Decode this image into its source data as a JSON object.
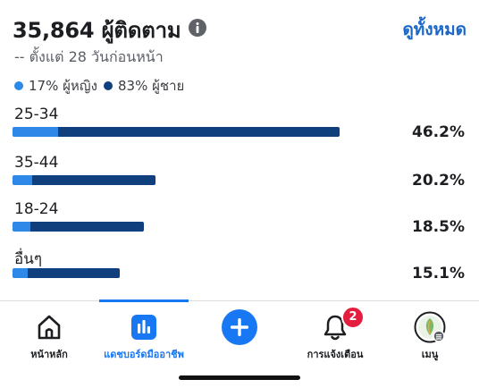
{
  "header": {
    "title": "35,864 ผู้ติดตาม",
    "see_all": "ดูทั้งหมด",
    "subtitle": "-- ตั้งแต่ 28 วันก่อนหน้า"
  },
  "legend": {
    "female": {
      "label": "17% ผู้หญิง",
      "color": "#2d88e8"
    },
    "male": {
      "label": "83% ผู้ชาย",
      "color": "#0f3f7d"
    }
  },
  "chart_data": {
    "type": "bar",
    "orientation": "horizontal",
    "categories": [
      "25-34",
      "35-44",
      "18-24",
      "อื่นๆ"
    ],
    "values": [
      46.2,
      20.2,
      18.5,
      15.1
    ],
    "value_labels": [
      "46.2%",
      "20.2%",
      "18.5%",
      "15.1%"
    ],
    "series": [
      {
        "name": "ผู้หญิง",
        "share": 0.17,
        "color": "#2d88e8"
      },
      {
        "name": "ผู้ชาย",
        "share": 0.83,
        "color": "#0f3f7d"
      }
    ]
  },
  "bottom_nav": {
    "items": [
      {
        "label": "หน้าหลัก",
        "icon": "home-icon"
      },
      {
        "label": "แดชบอร์ดมืออาชีพ",
        "icon": "dashboard-icon",
        "active": true
      },
      {
        "label": "",
        "icon": "create-plus-icon"
      },
      {
        "label": "การแจ้งเตือน",
        "icon": "bell-icon",
        "badge": "2"
      },
      {
        "label": "เมนู",
        "icon": "profile-menu-icon"
      }
    ]
  },
  "colors": {
    "accent": "#1877f2",
    "badge": "#e41e3f",
    "link": "#1a67c6"
  }
}
